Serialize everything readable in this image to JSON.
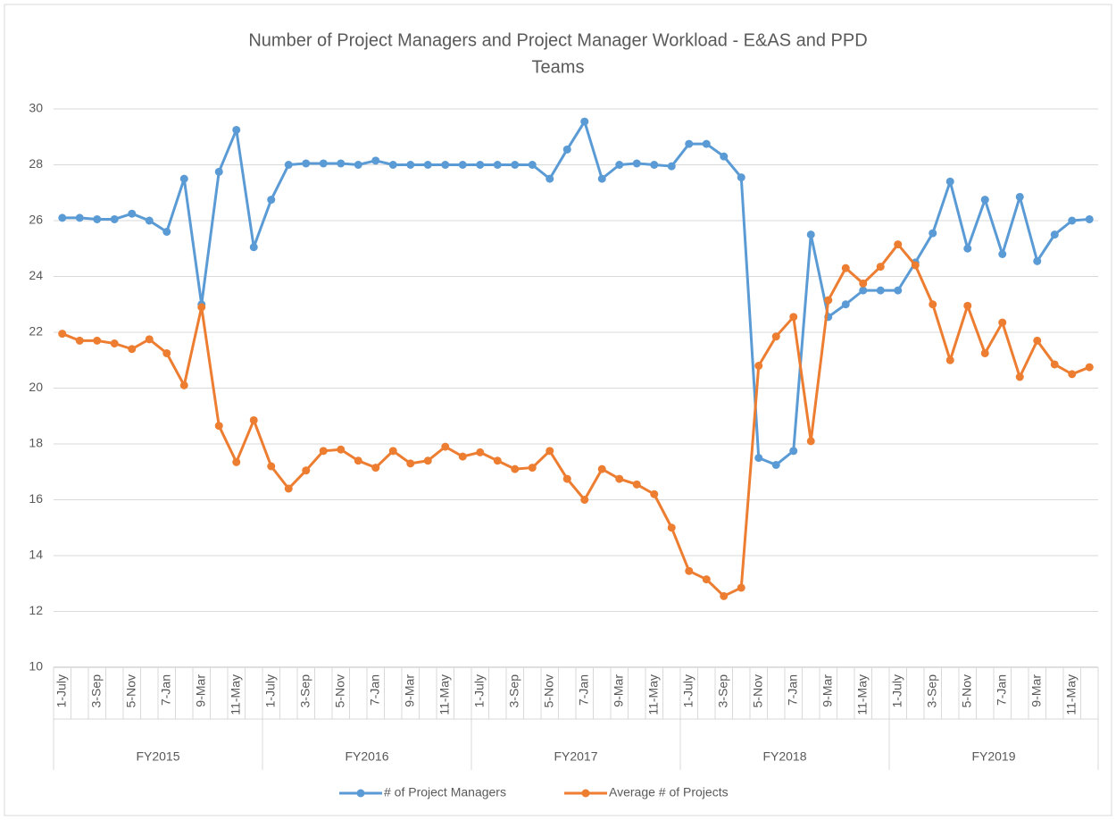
{
  "chart_data": {
    "type": "line",
    "title": [
      "Number of Project Managers and Project Manager Workload - E&AS and PPD",
      "Teams"
    ],
    "categories": [
      "1-July",
      null,
      "3-Sep",
      null,
      "5-Nov",
      null,
      "7-Jan",
      null,
      "9-Mar",
      null,
      "11-May",
      null,
      "1-July",
      null,
      "3-Sep",
      null,
      "5-Nov",
      null,
      "7-Jan",
      null,
      "9-Mar",
      null,
      "11-May",
      null,
      "1-July",
      null,
      "3-Sep",
      null,
      "5-Nov",
      null,
      "7-Jan",
      null,
      "9-Mar",
      null,
      "11-May",
      null,
      "1-July",
      null,
      "3-Sep",
      null,
      "5-Nov",
      null,
      "7-Jan",
      null,
      "9-Mar",
      null,
      "11-May",
      null,
      "1-July",
      null,
      "3-Sep",
      null,
      "5-Nov",
      null,
      "7-Jan",
      null,
      "9-Mar",
      null,
      "11-May",
      null
    ],
    "groups": [
      "FY2015",
      "FY2016",
      "FY2017",
      "FY2018",
      "FY2019"
    ],
    "series": [
      {
        "name": "# of Project Managers",
        "color": "#5b9bd5",
        "values": [
          26.1,
          26.1,
          26.05,
          26.05,
          26.25,
          26.0,
          25.6,
          27.5,
          23.0,
          27.75,
          29.25,
          25.05,
          26.75,
          28.0,
          28.05,
          28.05,
          28.05,
          28.0,
          28.15,
          28.0,
          28.0,
          28.0,
          28.0,
          28.0,
          28.0,
          28.0,
          28.0,
          28.0,
          27.5,
          28.55,
          29.55,
          27.5,
          28.0,
          28.05,
          28.0,
          27.95,
          28.75,
          28.75,
          28.3,
          27.55,
          17.5,
          17.25,
          17.75,
          25.5,
          22.55,
          23.0,
          23.5,
          23.5,
          23.5,
          24.5,
          25.55,
          27.4,
          25.0,
          26.75,
          24.8,
          26.85,
          24.55,
          25.5,
          26.0,
          26.05
        ]
      },
      {
        "name": "Average # of Projects",
        "color": "#ed7d31",
        "values": [
          21.95,
          21.7,
          21.7,
          21.6,
          21.4,
          21.75,
          21.25,
          20.1,
          22.9,
          18.65,
          17.35,
          18.85,
          17.2,
          16.4,
          17.05,
          17.75,
          17.8,
          17.4,
          17.15,
          17.75,
          17.3,
          17.4,
          17.9,
          17.55,
          17.7,
          17.4,
          17.1,
          17.15,
          17.75,
          16.75,
          16.0,
          17.1,
          16.75,
          16.55,
          16.2,
          15.0,
          13.45,
          13.15,
          12.55,
          12.85,
          20.8,
          21.85,
          22.55,
          18.1,
          23.15,
          24.3,
          23.75,
          24.35,
          25.15,
          24.4,
          23.0,
          21.0,
          22.95,
          21.25,
          22.35,
          20.4,
          21.7,
          20.85,
          20.5,
          20.75
        ]
      }
    ],
    "ylim": [
      10,
      30
    ],
    "yticks": [
      10,
      12,
      14,
      16,
      18,
      20,
      22,
      24,
      26,
      28,
      30
    ],
    "grid": true,
    "legend": "bottom"
  }
}
